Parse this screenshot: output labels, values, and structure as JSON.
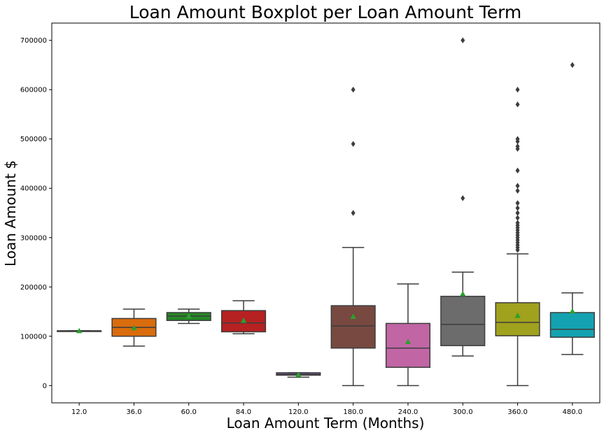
{
  "chart_data": {
    "type": "box",
    "title": "Loan Amount Boxplot per Loan Amount Term",
    "xlabel": "Loan Amount Term (Months)",
    "ylabel": "Loan Amount $",
    "ylim": [
      -35000,
      735000
    ],
    "yticks": [
      0,
      100000,
      200000,
      300000,
      400000,
      500000,
      600000,
      700000
    ],
    "ytick_labels": [
      "0",
      "100000",
      "200000",
      "300000",
      "400000",
      "500000",
      "600000",
      "700000"
    ],
    "grid": false,
    "categories": [
      "12.0",
      "36.0",
      "60.0",
      "84.0",
      "120.0",
      "180.0",
      "240.0",
      "300.0",
      "360.0",
      "480.0"
    ],
    "colors": [
      "#1f77b4",
      "#ff7f0e",
      "#2ca02c",
      "#d62728",
      "#9467bd",
      "#8c564b",
      "#e377c2",
      "#7f7f7f",
      "#bcbd22",
      "#17becf"
    ],
    "mean_marker_color": "#2ca02c",
    "median_color": "#3d3d3d",
    "boxes": [
      {
        "whislo": 111000,
        "q1": 111000,
        "med": 111000,
        "q3": 111000,
        "whishi": 111000,
        "mean": 111000,
        "fliers": []
      },
      {
        "whislo": 80000,
        "q1": 100000,
        "med": 118000,
        "q3": 136000,
        "whishi": 155000,
        "mean": 117000,
        "fliers": []
      },
      {
        "whislo": 126000,
        "q1": 132000,
        "med": 141000,
        "q3": 148000,
        "whishi": 155000,
        "mean": 141000,
        "fliers": []
      },
      {
        "whislo": 105000,
        "q1": 109000,
        "med": 127000,
        "q3": 152000,
        "whishi": 172000,
        "mean": 132000,
        "fliers": []
      },
      {
        "whislo": 17000,
        "q1": 21000,
        "med": 23000,
        "q3": 26000,
        "whishi": 26000,
        "mean": 22000,
        "fliers": []
      },
      {
        "whislo": 0,
        "q1": 76000,
        "med": 121000,
        "q3": 162000,
        "whishi": 280000,
        "mean": 140000,
        "fliers": [
          350000,
          490000,
          600000
        ]
      },
      {
        "whislo": 0,
        "q1": 37000,
        "med": 76000,
        "q3": 126000,
        "whishi": 206000,
        "mean": 89000,
        "fliers": []
      },
      {
        "whislo": 60000,
        "q1": 81000,
        "med": 124000,
        "q3": 181000,
        "whishi": 230000,
        "mean": 186000,
        "fliers": [
          380000,
          700000
        ]
      },
      {
        "whislo": 0,
        "q1": 101000,
        "med": 128000,
        "q3": 168000,
        "whishi": 267000,
        "mean": 142000,
        "fliers": [
          275000,
          280000,
          285000,
          290000,
          295000,
          300000,
          305000,
          310000,
          315000,
          320000,
          325000,
          330000,
          340000,
          350000,
          360000,
          370000,
          395000,
          405000,
          436000,
          480000,
          485000,
          495000,
          500000,
          570000,
          600000
        ]
      },
      {
        "whislo": 63000,
        "q1": 98000,
        "med": 114000,
        "q3": 148000,
        "whishi": 188000,
        "mean": 151000,
        "fliers": [
          650000
        ]
      }
    ]
  }
}
